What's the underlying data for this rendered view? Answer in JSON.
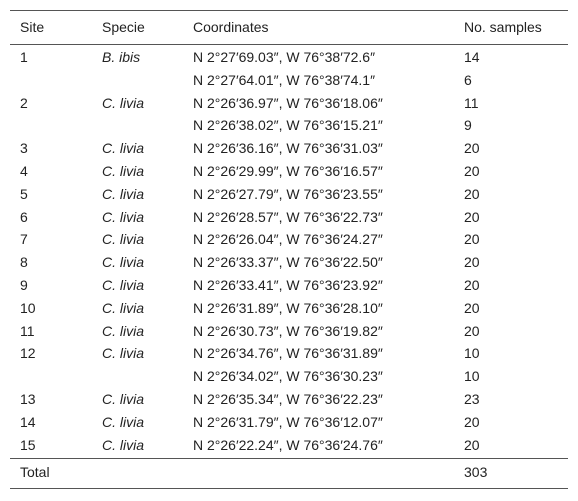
{
  "table": {
    "columns": [
      "Site",
      "Specie",
      "Coordinates",
      "No. samples"
    ],
    "rows": [
      {
        "site": "1",
        "specie": "B. ibis",
        "coordinates": "N 2°27′69.03″, W 76°38′72.6″",
        "samples": 14
      },
      {
        "coordinates": "N 2°27′64.01″, W 76°38′74.1″",
        "samples": 6
      },
      {
        "site": "2",
        "specie": "C. livia",
        "coordinates": "N 2°26′36.97″, W 76°36′18.06″",
        "samples": 11
      },
      {
        "coordinates": "N 2°26′38.02″, W 76°36′15.21″",
        "samples": 9
      },
      {
        "site": "3",
        "specie": "C. livia",
        "coordinates": "N 2°26′36.16″, W 76°36′31.03″",
        "samples": 20
      },
      {
        "site": "4",
        "specie": "C. livia",
        "coordinates": "N 2°26′29.99″, W 76°36′16.57″",
        "samples": 20
      },
      {
        "site": "5",
        "specie": "C. livia",
        "coordinates": "N 2°26′27.79″, W 76°36′23.55″",
        "samples": 20
      },
      {
        "site": "6",
        "specie": "C. livia",
        "coordinates": "N 2°26′28.57″, W 76°36′22.73″",
        "samples": 20
      },
      {
        "site": "7",
        "specie": "C. livia",
        "coordinates": "N 2°26′26.04″, W 76°36′24.27″",
        "samples": 20
      },
      {
        "site": "8",
        "specie": "C. livia",
        "coordinates": "N 2°26′33.37″, W 76°36′22.50″",
        "samples": 20
      },
      {
        "site": "9",
        "specie": "C. livia",
        "coordinates": "N 2°26′33.41″, W 76°36′23.92″",
        "samples": 20
      },
      {
        "site": "10",
        "specie": "C. livia",
        "coordinates": "N 2°26′31.89″, W 76°36′28.10″",
        "samples": 20
      },
      {
        "site": "11",
        "specie": "C. livia",
        "coordinates": "N 2°26′30.73″, W 76°36′19.82″",
        "samples": 20
      },
      {
        "site": "12",
        "specie": "C. livia",
        "coordinates": "N 2°26′34.76″, W 76°36′31.89″",
        "samples": 10
      },
      {
        "coordinates": "N 2°26′34.02″, W 76°36′30.23″",
        "samples": 10
      },
      {
        "site": "13",
        "specie": "C. livia",
        "coordinates": "N 2°26′35.34″, W 76°36′22.23″",
        "samples": 23
      },
      {
        "site": "14",
        "specie": "C. livia",
        "coordinates": "N 2°26′31.79″, W 76°36′12.07″",
        "samples": 20
      },
      {
        "site": "15",
        "specie": "C. livia",
        "coordinates": "N 2°26′22.24″, W 76°36′24.76″",
        "samples": 20
      }
    ],
    "total": {
      "label": "Total",
      "samples": 303
    }
  }
}
